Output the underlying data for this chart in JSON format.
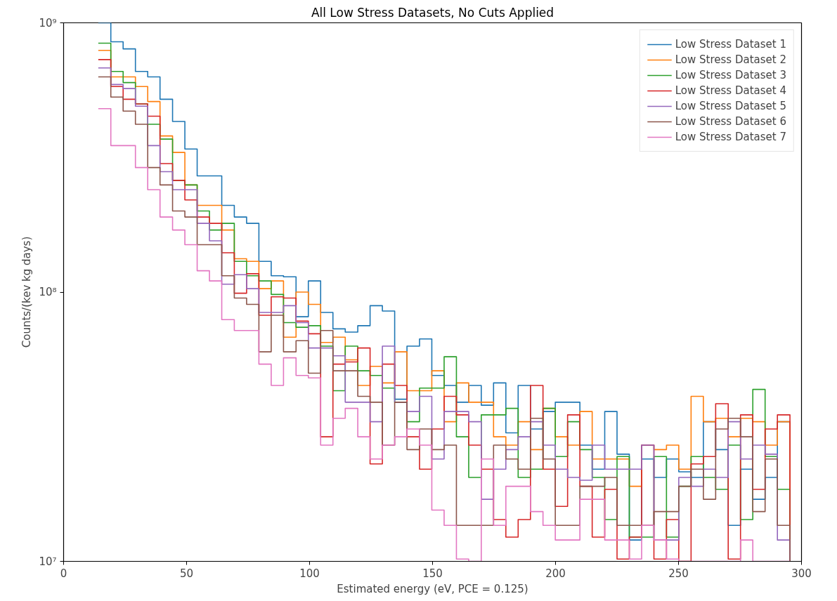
{
  "chart_data": {
    "type": "histogram",
    "title": "All Low Stress Datasets, No Cuts Applied",
    "xlabel": "Estimated energy (eV, PCE = 0.125)",
    "ylabel": "Counts/(kev kg days)",
    "bins": [
      14.1,
      19.2,
      24.2,
      29.2,
      34.2,
      39.2,
      44.3,
      49.3,
      54.3,
      59.3,
      64.3,
      69.4,
      74.4,
      79.4,
      84.4,
      89.4,
      94.5,
      99.5,
      104.5,
      109.5,
      114.5,
      119.6,
      124.6,
      129.6,
      134.6,
      139.6,
      144.7,
      149.7,
      154.7,
      159.7,
      164.7,
      169.8,
      174.8,
      179.8,
      184.8,
      189.8,
      194.9,
      199.9,
      204.9,
      209.9,
      214.9,
      220.0,
      225.0,
      230.0,
      235.0,
      240.0,
      245.1,
      250.1,
      255.1,
      260.1,
      265.1,
      270.2,
      275.2,
      280.2,
      285.2,
      290.2,
      295.3
    ],
    "series": [
      {
        "name": "Low Stress Dataset 1",
        "color": "#1f77b4",
        "values": [
          1000000000,
          850000000.0,
          800000000.0,
          660000000.0,
          630000000.0,
          520000000.0,
          430000000.0,
          340000000.0,
          270000000.0,
          270000000.0,
          210000000.0,
          190000000.0,
          180000000.0,
          130000000.0,
          115000000.0,
          114000000.0,
          81000000.0,
          110000000.0,
          84000000.0,
          73000000.0,
          71000000.0,
          75000000.0,
          89000000.0,
          85000000.0,
          40000000.0,
          63000000.0,
          67000000.0,
          49000000.0,
          45000000.0,
          39000000.0,
          45000000.0,
          38000000.0,
          46000000.0,
          30000000.0,
          45000000.0,
          31000000.0,
          36000000.0,
          39000000.0,
          39000000.0,
          27000000.0,
          22000000.0,
          36000000.0,
          25000000.0,
          12000000.0,
          24000000.0,
          20500000.0,
          24000000.0,
          21500000.0,
          20500000.0,
          33000000.0,
          26000000.0,
          13600000.0,
          22000000.0,
          17000000.0,
          20500000.0,
          33000000.0
        ]
      },
      {
        "name": "Low Stress Dataset 2",
        "color": "#ff7f0e",
        "values": [
          790000000.0,
          630000000.0,
          630000000.0,
          580000000.0,
          510000000.0,
          380000000.0,
          330000000.0,
          250000000.0,
          210000000.0,
          210000000.0,
          170000000.0,
          133000000.0,
          130000000.0,
          103000000.0,
          110000000.0,
          68000000.0,
          100000000.0,
          90000000.0,
          65000000.0,
          68000000.0,
          56000000.0,
          45000000.0,
          53000000.0,
          46000000.0,
          60000000.0,
          43000000.0,
          43000000.0,
          51000000.0,
          33000000.0,
          46000000.0,
          39000000.0,
          39000000.0,
          29000000.0,
          27000000.0,
          33000000.0,
          26000000.0,
          37000000.0,
          29000000.0,
          27000000.0,
          36000000.0,
          24000000.0,
          24000000.0,
          24000000.0,
          19000000.0,
          27000000.0,
          26000000.0,
          27000000.0,
          22000000.0,
          41000000.0,
          33000000.0,
          34000000.0,
          29000000.0,
          34000000.0,
          33000000.0,
          27000000.0,
          33000000.0
        ]
      },
      {
        "name": "Low Stress Dataset 3",
        "color": "#2ca02c",
        "values": [
          840000000.0,
          660000000.0,
          600000000.0,
          500000000.0,
          420000000.0,
          370000000.0,
          260000000.0,
          250000000.0,
          200000000.0,
          170000000.0,
          180000000.0,
          130000000.0,
          115000000.0,
          110000000.0,
          98000000.0,
          77000000.0,
          74000000.0,
          75000000.0,
          63000000.0,
          43000000.0,
          63000000.0,
          51000000.0,
          49000000.0,
          44000000.0,
          39000000.0,
          33000000.0,
          44000000.0,
          44000000.0,
          57500000.0,
          29000000.0,
          20500000.0,
          35000000.0,
          35000000.0,
          37000000.0,
          20500000.0,
          22000000.0,
          37000000.0,
          24500000.0,
          33000000.0,
          26000000.0,
          20500000.0,
          14300000.0,
          24500000.0,
          12300000.0,
          12300000.0,
          24500000.0,
          12300000.0,
          19000000.0,
          24500000.0,
          20500000.0,
          18500000.0,
          27000000.0,
          14300000.0,
          43500000.0,
          24500000.0,
          18500000.0
        ]
      },
      {
        "name": "Low Stress Dataset 4",
        "color": "#d62728",
        "values": [
          730000000.0,
          580000000.0,
          520000000.0,
          500000000.0,
          450000000.0,
          300000000.0,
          260000000.0,
          220000000.0,
          190000000.0,
          180000000.0,
          140000000.0,
          99000000.0,
          117000000.0,
          82000000.0,
          96000000.0,
          95000000.0,
          78000000.0,
          70000000.0,
          29000000.0,
          54000000.0,
          55000000.0,
          62000000.0,
          23000000.0,
          54000000.0,
          45000000.0,
          29000000.0,
          22000000.0,
          31000000.0,
          41000000.0,
          35000000.0,
          27000000.0,
          22000000.0,
          14300000.0,
          12300000.0,
          14300000.0,
          45000000.0,
          22000000.0,
          16000000.0,
          35000000.0,
          19000000.0,
          12300000.0,
          18500000.0,
          10200000.0,
          12300000.0,
          27000000.0,
          10200000.0,
          14300000.0,
          10000000.0,
          23000000.0,
          24500000.0,
          38500000.0,
          10200000.0,
          35000000.0,
          18500000.0,
          31000000.0,
          35000000.0
        ]
      },
      {
        "name": "Low Stress Dataset 5",
        "color": "#9467bd",
        "values": [
          680000000.0,
          590000000.0,
          570000000.0,
          490000000.0,
          350000000.0,
          280000000.0,
          240000000.0,
          240000000.0,
          180000000.0,
          155000000.0,
          107000000.0,
          116000000.0,
          103000000.0,
          84000000.0,
          84000000.0,
          89000000.0,
          77000000.0,
          62000000.0,
          62000000.0,
          58000000.0,
          39000000.0,
          39000000.0,
          33000000.0,
          63000000.0,
          39000000.0,
          36000000.0,
          41000000.0,
          24000000.0,
          36000000.0,
          36000000.0,
          33000000.0,
          17000000.0,
          22000000.0,
          26000000.0,
          29000000.0,
          33000000.0,
          27000000.0,
          22000000.0,
          20500000.0,
          20000000.0,
          27000000.0,
          22000000.0,
          22000000.0,
          22000000.0,
          27000000.0,
          12000000.0,
          12000000.0,
          20500000.0,
          19000000.0,
          22000000.0,
          20500000.0,
          33000000.0,
          24000000.0,
          27000000.0,
          25000000.0,
          12000000.0
        ]
      },
      {
        "name": "Low Stress Dataset 6",
        "color": "#8c564b",
        "values": [
          630000000.0,
          530000000.0,
          470000000.0,
          420000000.0,
          290000000.0,
          250000000.0,
          200000000.0,
          190000000.0,
          150000000.0,
          150000000.0,
          115000000.0,
          95000000.0,
          90000000.0,
          60000000.0,
          82000000.0,
          60000000.0,
          66000000.0,
          50000000.0,
          72000000.0,
          51000000.0,
          51000000.0,
          41000000.0,
          39000000.0,
          27000000.0,
          39000000.0,
          26000000.0,
          31000000.0,
          26000000.0,
          27000000.0,
          13600000.0,
          13600000.0,
          13600000.0,
          27000000.0,
          24000000.0,
          22000000.0,
          34000000.0,
          24000000.0,
          13600000.0,
          13600000.0,
          19000000.0,
          19000000.0,
          20500000.0,
          13600000.0,
          13600000.0,
          13600000.0,
          15300000.0,
          15300000.0,
          19000000.0,
          22000000.0,
          17000000.0,
          31000000.0,
          34000000.0,
          29000000.0,
          15300000.0,
          24000000.0,
          13600000.0
        ]
      },
      {
        "name": "Low Stress Dataset 7",
        "color": "#e377c2",
        "values": [
          480000000.0,
          350000000.0,
          350000000.0,
          290000000.0,
          240000000.0,
          190000000.0,
          170000000.0,
          150000000.0,
          120000000.0,
          110000000.0,
          79000000.0,
          72000000.0,
          72000000.0,
          54000000.0,
          45000000.0,
          57000000.0,
          49000000.0,
          48000000.0,
          27000000.0,
          34000000.0,
          37000000.0,
          29000000.0,
          24000000.0,
          27000000.0,
          29000000.0,
          31000000.0,
          27000000.0,
          15500000.0,
          13600000.0,
          10200000.0,
          10000000.0,
          24000000.0,
          13600000.0,
          19000000.0,
          19000000.0,
          15300000.0,
          13600000.0,
          12000000.0,
          12000000.0,
          17000000.0,
          17000000.0,
          12000000.0,
          12000000.0,
          10200000.0,
          13600000.0,
          12000000.0,
          10200000.0,
          10000000.0,
          10000000.0,
          10000000.0,
          10000000.0,
          10000000.0,
          12000000.0,
          10000000.0,
          10000000.0,
          10000000.0
        ]
      }
    ],
    "log": true,
    "xlim": [
      0,
      300
    ],
    "xticks": [
      0,
      50,
      100,
      150,
      200,
      250,
      300
    ],
    "ylim": [
      10000000,
      1000000000
    ],
    "yticks": [
      {
        "value": 10000000,
        "label": "10⁷"
      },
      {
        "value": 100000000,
        "label": "10⁸"
      },
      {
        "value": 1000000000,
        "label": "10⁹"
      }
    ],
    "grid": false,
    "stacked": false,
    "legend": "top right",
    "line_style": "solid"
  }
}
